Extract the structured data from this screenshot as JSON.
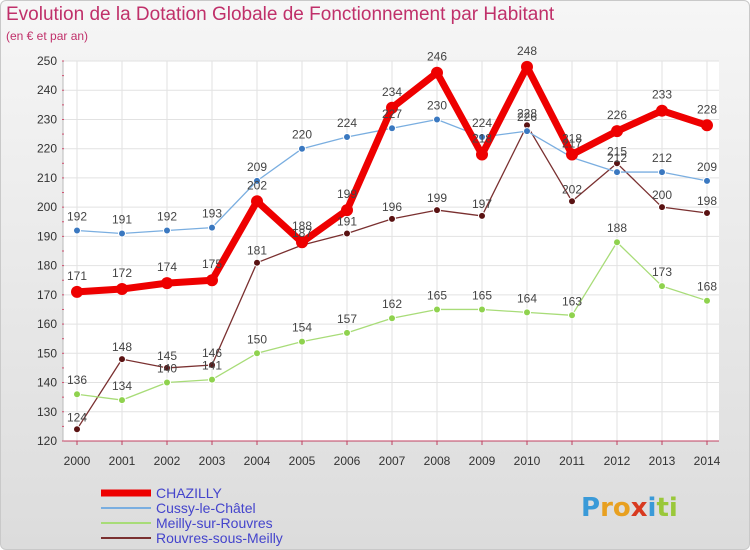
{
  "chart_data": {
    "type": "line",
    "title": "Evolution de la Dotation Globale de Fonctionnement par Habitant",
    "subtitle": "(en € et par an)",
    "categories": [
      "2000",
      "2001",
      "2002",
      "2003",
      "2004",
      "2005",
      "2006",
      "2007",
      "2008",
      "2009",
      "2010",
      "2011",
      "2012",
      "2013",
      "2014"
    ],
    "ylim": [
      120,
      250
    ],
    "yticks": [
      120,
      130,
      140,
      150,
      160,
      170,
      180,
      190,
      200,
      210,
      220,
      230,
      240,
      250
    ],
    "grid": true,
    "legend_position": "bottom-left",
    "series": [
      {
        "name": "CHAZILLY",
        "color": "#ee0000",
        "marker": "#ee0000",
        "values": [
          171,
          172,
          174,
          175,
          202,
          188,
          199,
          234,
          246,
          218,
          248,
          218,
          226,
          233,
          228
        ]
      },
      {
        "name": "Cussy-le-Châtel",
        "color": "#7aaee0",
        "marker": "#3a78c0",
        "values": [
          192,
          191,
          192,
          193,
          209,
          220,
          224,
          227,
          230,
          224,
          226,
          217,
          212,
          212,
          209
        ]
      },
      {
        "name": "Meilly-sur-Rouvres",
        "color": "#a8dc78",
        "marker": "#8fd24e",
        "values": [
          136,
          134,
          140,
          141,
          150,
          154,
          157,
          162,
          165,
          165,
          164,
          163,
          188,
          173,
          168
        ]
      },
      {
        "name": "Rouvres-sous-Meilly",
        "color": "#7a3030",
        "marker": "#5a1212",
        "values": [
          124,
          148,
          145,
          146,
          181,
          187,
          191,
          196,
          199,
          197,
          228,
          202,
          215,
          200,
          198
        ]
      }
    ]
  },
  "logo": {
    "text": "Proxiti",
    "letters": [
      {
        "ch": "P",
        "color": "#3a9ad8"
      },
      {
        "ch": "r",
        "color": "#e8a020"
      },
      {
        "ch": "o",
        "color": "#e8a020"
      },
      {
        "ch": "x",
        "color": "#d83a20"
      },
      {
        "ch": "i",
        "color": "#3a9ad8"
      },
      {
        "ch": "t",
        "color": "#9ac83a"
      },
      {
        "ch": "i",
        "color": "#9ac83a"
      }
    ]
  }
}
